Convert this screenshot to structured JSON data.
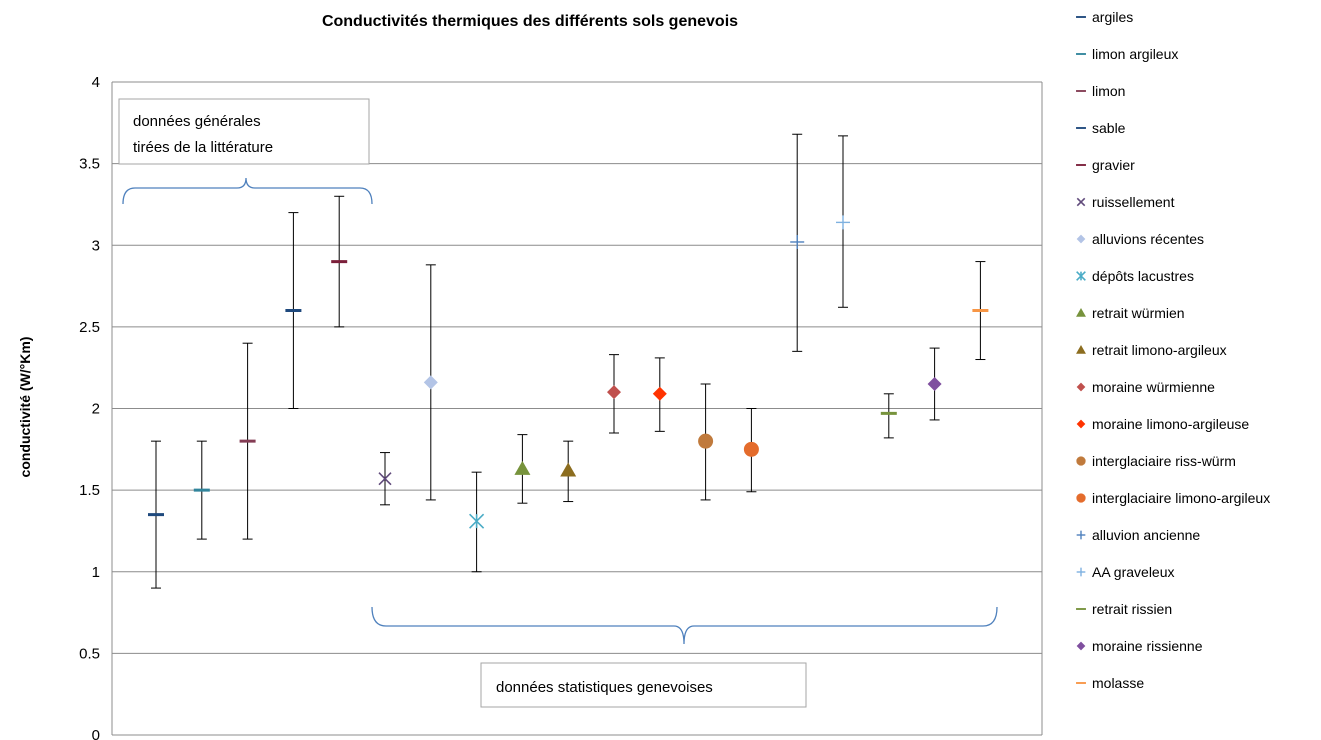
{
  "chart_data": {
    "type": "scatter",
    "title": "Conductivités thermiques des différents sols genevois",
    "xlabel": "",
    "ylabel": "conductivité (W/°Km)",
    "ylim": [
      0,
      4
    ],
    "yticks": [
      "0",
      "0.5",
      "1",
      "1.5",
      "2",
      "2.5",
      "3",
      "3.5",
      "4"
    ],
    "grid": true,
    "legend_position": "right",
    "series": [
      {
        "name": "argiles",
        "marker": "dash",
        "color": "#1f497d",
        "x": 1,
        "y": 1.35,
        "low": 0.9,
        "high": 1.8
      },
      {
        "name": "limon argileux",
        "marker": "dash",
        "color": "#31859c",
        "x": 2,
        "y": 1.5,
        "low": 1.2,
        "high": 1.8
      },
      {
        "name": "limon",
        "marker": "dash",
        "color": "#843c54",
        "x": 3,
        "y": 1.8,
        "low": 1.2,
        "high": 2.4
      },
      {
        "name": "sable",
        "marker": "dash",
        "color": "#1f497d",
        "x": 4,
        "y": 2.6,
        "low": 2.0,
        "high": 3.2
      },
      {
        "name": "gravier",
        "marker": "dash",
        "color": "#7b1f3a",
        "x": 5,
        "y": 2.9,
        "low": 2.5,
        "high": 3.3
      },
      {
        "name": "ruissellement",
        "marker": "x",
        "color": "#604a7b",
        "x": 6,
        "y": 1.57,
        "low": 1.41,
        "high": 1.73
      },
      {
        "name": "alluvions récentes",
        "marker": "diamond",
        "color": "#b3c4e6",
        "x": 7,
        "y": 2.16,
        "low": 1.44,
        "high": 2.88
      },
      {
        "name": "dépôts lacustres",
        "marker": "star",
        "color": "#4bacc6",
        "x": 8,
        "y": 1.31,
        "low": 1.0,
        "high": 1.61
      },
      {
        "name": "retrait würmien",
        "marker": "triangle",
        "color": "#77933c",
        "x": 9,
        "y": 1.63,
        "low": 1.42,
        "high": 1.84
      },
      {
        "name": "retrait limono-argileux",
        "marker": "triangle",
        "color": "#8c6d1f",
        "x": 10,
        "y": 1.62,
        "low": 1.43,
        "high": 1.8
      },
      {
        "name": "moraine würmienne",
        "marker": "diamond",
        "color": "#c0504d",
        "x": 11,
        "y": 2.1,
        "low": 1.85,
        "high": 2.33
      },
      {
        "name": "moraine limono-argileuse",
        "marker": "diamond",
        "color": "#ff3300",
        "x": 12,
        "y": 2.09,
        "low": 1.86,
        "high": 2.31
      },
      {
        "name": "interglaciaire riss-würm",
        "marker": "circle",
        "color": "#c07a3c",
        "x": 13,
        "y": 1.8,
        "low": 1.44,
        "high": 2.15
      },
      {
        "name": "interglaciaire limono-argileux",
        "marker": "circle",
        "color": "#e46c2c",
        "x": 14,
        "y": 1.75,
        "low": 1.49,
        "high": 2.0
      },
      {
        "name": "alluvion ancienne",
        "marker": "plus",
        "color": "#4f81bd",
        "x": 15,
        "y": 3.02,
        "low": 2.35,
        "high": 3.68
      },
      {
        "name": "AA graveleux",
        "marker": "plus",
        "color": "#7eb1e0",
        "x": 16,
        "y": 3.14,
        "low": 2.62,
        "high": 3.67
      },
      {
        "name": "retrait rissien",
        "marker": "dash",
        "color": "#77933c",
        "x": 17,
        "y": 1.97,
        "low": 1.82,
        "high": 2.09
      },
      {
        "name": "moraine rissienne",
        "marker": "diamond",
        "color": "#7f4f9f",
        "x": 18,
        "y": 2.15,
        "low": 1.93,
        "high": 2.37
      },
      {
        "name": "molasse",
        "marker": "dash",
        "color": "#f79646",
        "x": 19,
        "y": 2.6,
        "low": 2.3,
        "high": 2.9
      }
    ],
    "annotations": [
      {
        "id": "literature",
        "lines": [
          "données  générales",
          "tirées de la littérature"
        ]
      },
      {
        "id": "geneva",
        "lines": [
          "données statistiques genevoises"
        ]
      }
    ]
  }
}
